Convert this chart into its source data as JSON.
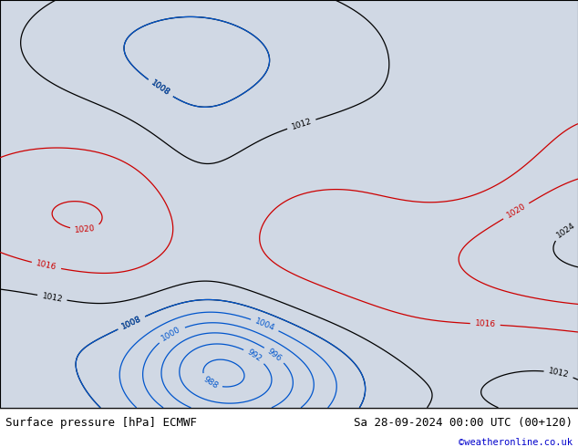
{
  "title_left": "Surface pressure [hPa] ECMWF",
  "title_right": "Sa 28-09-2024 00:00 UTC (00+120)",
  "copyright": "©weatheronline.co.uk",
  "land_color": "#a8d870",
  "ocean_color": "#d0d8e4",
  "footer_bg": "#e8e8e8",
  "footer_text_color": "#000000",
  "copyright_color": "#0000cc",
  "fig_width": 6.34,
  "fig_height": 4.9,
  "dpi": 100,
  "contour_black_color": "#000000",
  "contour_red_color": "#cc0000",
  "contour_blue_color": "#0055cc",
  "label_font_size": 6.5,
  "footer_font_size": 9,
  "lon_min": -105,
  "lon_max": -15,
  "lat_min": -65,
  "lat_max": 20
}
